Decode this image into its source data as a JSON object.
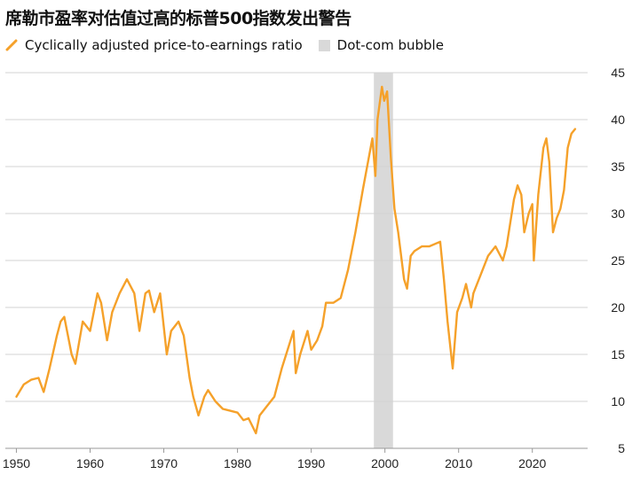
{
  "title": "席勒市盈率对估值过高的标普500指数发出警告",
  "legend": {
    "series_label": "Cyclically adjusted price-to-earnings ratio",
    "band_label": "Dot-com bubble"
  },
  "colors": {
    "line": "#f5a12a",
    "band": "#d9d9d9",
    "grid": "#d3d3d3",
    "axis": "#999999"
  },
  "chart_data": {
    "type": "line",
    "title": "席勒市盈率对估值过高的标普500指数发出警告",
    "xlim": [
      1948.5,
      2027.5
    ],
    "ylim": [
      5,
      45
    ],
    "x_ticks": [
      "1950",
      "1960",
      "1970",
      "1980",
      "1990",
      "2000",
      "2010",
      "2020"
    ],
    "y_ticks": [
      "45",
      "40",
      "35",
      "30",
      "25",
      "20",
      "15",
      "10",
      "5"
    ],
    "grid": true,
    "band": {
      "name": "Dot-com bubble",
      "x_start": 1998.5,
      "x_end": 2001.1
    },
    "series": [
      {
        "name": "Cyclically adjusted price-to-earnings ratio",
        "x": [
          1950,
          1951,
          1952,
          1953,
          1953.7,
          1954.5,
          1955.5,
          1956,
          1956.5,
          1957.5,
          1958,
          1959,
          1960,
          1961,
          1961.5,
          1962.3,
          1963,
          1964,
          1965,
          1966,
          1966.7,
          1967.5,
          1968,
          1968.7,
          1969.5,
          1970.4,
          1971,
          1972,
          1972.7,
          1973.5,
          1974,
          1974.7,
          1975.5,
          1976,
          1977,
          1978,
          1979,
          1980,
          1980.8,
          1981.5,
          1982.5,
          1983,
          1984,
          1985,
          1986,
          1987.6,
          1987.9,
          1988.5,
          1989.5,
          1990,
          1990.8,
          1991.5,
          1992,
          1993,
          1994,
          1995,
          1996,
          1997,
          1998.3,
          1998.7,
          1999,
          1999.6,
          1999.9,
          2000.3,
          2000.8,
          2001.3,
          2001.8,
          2002.6,
          2003,
          2003.5,
          2004,
          2005,
          2006,
          2007.5,
          2008,
          2008.5,
          2009.2,
          2009.8,
          2010.5,
          2011,
          2011.7,
          2012,
          2013,
          2014,
          2015,
          2016,
          2016.5,
          2017.5,
          2018,
          2018.5,
          2018.9,
          2019.5,
          2020,
          2020.2,
          2020.8,
          2021.5,
          2021.9,
          2022.3,
          2022.8,
          2023.3,
          2023.8,
          2024.3,
          2024.8,
          2025.3,
          2025.8
        ],
        "values": [
          10.5,
          11.8,
          12.3,
          12.5,
          11.0,
          13.5,
          17.0,
          18.5,
          19.0,
          15.0,
          14.0,
          18.5,
          17.5,
          21.5,
          20.5,
          16.5,
          19.5,
          21.5,
          23.0,
          21.5,
          17.5,
          21.5,
          21.8,
          19.5,
          21.5,
          15.0,
          17.5,
          18.5,
          17.0,
          12.5,
          10.5,
          8.5,
          10.5,
          11.2,
          10.0,
          9.2,
          9.0,
          8.8,
          8.0,
          8.2,
          6.6,
          8.5,
          9.5,
          10.5,
          13.5,
          17.5,
          13.0,
          15.0,
          17.5,
          15.5,
          16.5,
          18.0,
          20.5,
          20.5,
          21.0,
          24.0,
          28.0,
          32.5,
          38.0,
          34.0,
          40.0,
          43.5,
          42.0,
          43.0,
          36.0,
          30.5,
          28.0,
          23.0,
          22.0,
          25.5,
          26.0,
          26.5,
          26.5,
          27.0,
          23.0,
          18.5,
          13.5,
          19.5,
          21.0,
          22.5,
          20.0,
          21.5,
          23.5,
          25.5,
          26.5,
          25.0,
          26.5,
          31.5,
          33.0,
          32.0,
          28.0,
          30.0,
          31.0,
          25.0,
          32.0,
          37.0,
          38.0,
          35.5,
          28.0,
          29.5,
          30.5,
          32.5,
          37.0,
          38.5,
          39.0
        ]
      }
    ]
  }
}
